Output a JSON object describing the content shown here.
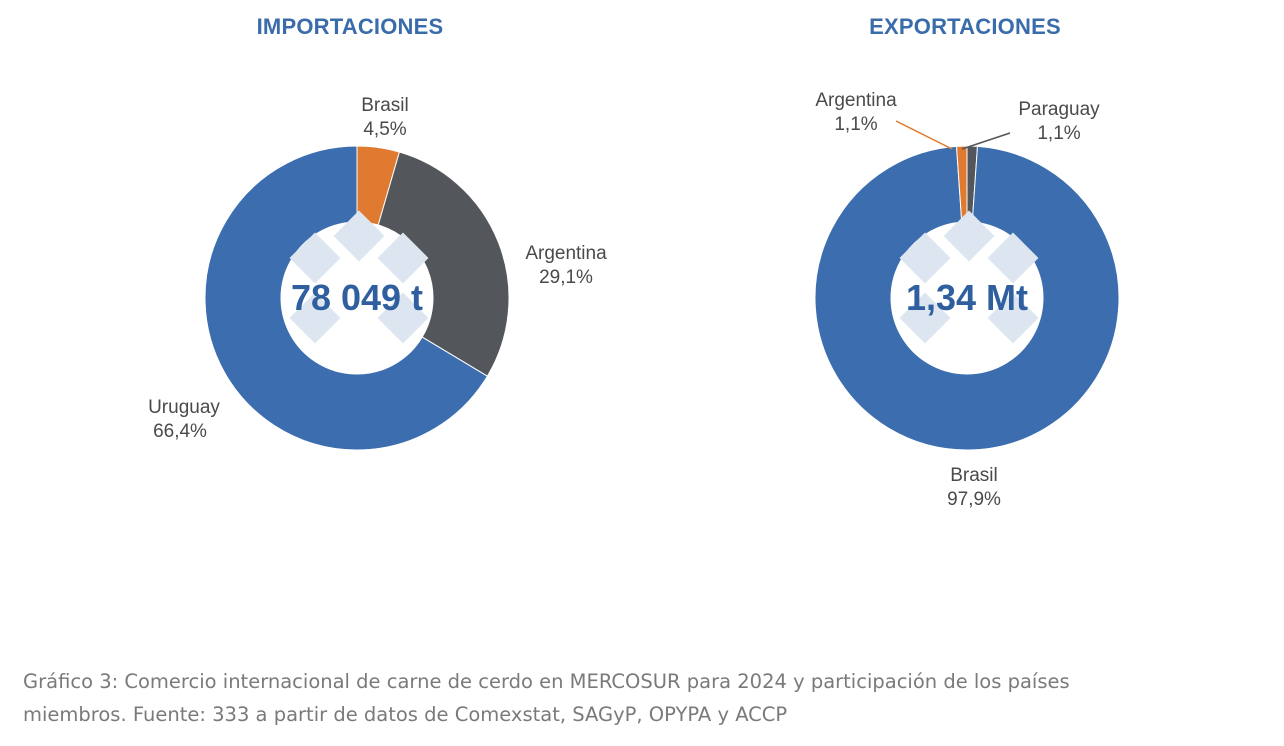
{
  "colors": {
    "title": "#3a6cab",
    "center_text": "#2f5f9e",
    "label_text": "#4a4a4a",
    "caption_text": "#7a7a7a",
    "blue": "#3b6daf",
    "dark_gray": "#53565a",
    "orange": "#e07a30",
    "watermark": "#d9e3ee"
  },
  "chart_data": [
    {
      "type": "pie",
      "variant": "donut",
      "title": "IMPORTACIONES",
      "center_label": "78 049 t",
      "slices": [
        {
          "name": "Brasil",
          "value": 4.5,
          "label": "4,5%",
          "color": "#e07a30"
        },
        {
          "name": "Argentina",
          "value": 29.1,
          "label": "29,1%",
          "color": "#53565a"
        },
        {
          "name": "Uruguay",
          "value": 66.4,
          "label": "66,4%",
          "color": "#3b6daf"
        }
      ]
    },
    {
      "type": "pie",
      "variant": "donut",
      "title": "EXPORTACIONES",
      "center_label": "1,34 Mt",
      "slices": [
        {
          "name": "Paraguay",
          "value": 1.1,
          "label": "1,1%",
          "color": "#53565a"
        },
        {
          "name": "Brasil",
          "value": 97.9,
          "label": "97,9%",
          "color": "#3b6daf"
        },
        {
          "name": "Argentina",
          "value": 1.1,
          "label": "1,1%",
          "color": "#e07a30"
        }
      ]
    }
  ],
  "caption": {
    "line1": "Gráfico 3: Comercio internacional de carne de cerdo en MERCOSUR para 2024 y participación de los países",
    "line2": "miembros. Fuente: 333 a partir de datos de Comexstat, SAGyP, OPYPA y ACCP"
  }
}
